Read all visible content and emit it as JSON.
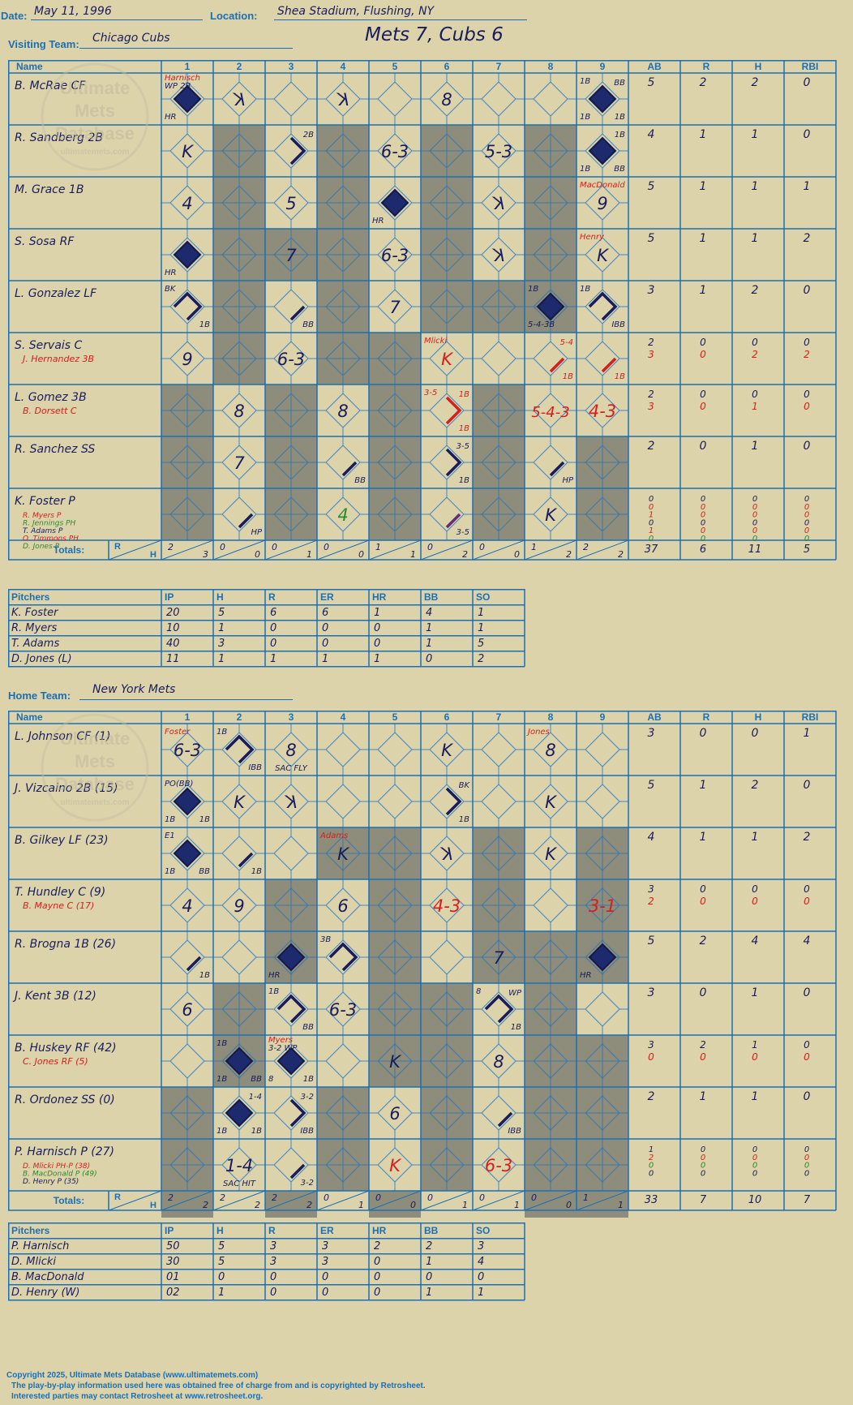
{
  "header": {
    "date_label": "Date:",
    "date": "May 11, 1996",
    "location_label": "Location:",
    "location": "Shea Stadium, Flushing, NY",
    "visiting_label": "Visiting Team:",
    "visiting_team": "Chicago Cubs",
    "home_label": "Home Team:",
    "home_team": "New York Mets",
    "result": "Mets 7, Cubs 6"
  },
  "watermark": {
    "l1": "Ultimate",
    "l2": "Mets",
    "l3": "Database",
    "l4": "ultimatemets.com"
  },
  "columns": {
    "name": "Name",
    "innings": [
      "1",
      "2",
      "3",
      "4",
      "5",
      "6",
      "7",
      "8",
      "9"
    ],
    "stats": [
      "AB",
      "R",
      "H",
      "RBI"
    ],
    "totals": "Totals:",
    "rh_r": "R",
    "rh_h": "H"
  },
  "pitch_cols": [
    "Pitchers",
    "IP",
    "H",
    "R",
    "ER",
    "HR",
    "BB",
    "SO"
  ],
  "colors": {
    "blue": "#1c6fb4",
    "ink": "#1a1d5c",
    "red": "#d42020",
    "green": "#2d8a2d",
    "purple": "#6a2a7a",
    "gray": "#8e8c7a",
    "paper": "#dcd3ab"
  },
  "visitors": {
    "shaded": [
      [],
      [
        2,
        4,
        6,
        8
      ],
      [
        2,
        4,
        6,
        8
      ],
      [
        2,
        3,
        4,
        6,
        8
      ],
      [
        2,
        4,
        6,
        7,
        8
      ],
      [
        2,
        4,
        5
      ],
      [
        1,
        3,
        5,
        7
      ],
      [
        1,
        3,
        5,
        7,
        9
      ],
      [
        1,
        3,
        5,
        7,
        9
      ]
    ],
    "rows": [
      {
        "name": "B. McRae CF",
        "subs": [],
        "stats": [
          [
            "5"
          ],
          [
            "2"
          ],
          [
            "2"
          ],
          [
            "0"
          ]
        ],
        "cells": {
          "1": {
            "d": "score",
            "tl": "Harnisch",
            "tlc": "red",
            "tl2": "WP 2B",
            "bl": "HR"
          },
          "2": {
            "t": "K",
            "k": "rev"
          },
          "4": {
            "t": "K",
            "k": "rev"
          },
          "6": {
            "t": "8"
          },
          "9": {
            "d": "score",
            "tl": "1B",
            "tr": "BB",
            "bl": "1B",
            "br": "1B"
          }
        }
      },
      {
        "name": "R. Sandberg 2B",
        "subs": [],
        "stats": [
          [
            "4"
          ],
          [
            "1"
          ],
          [
            "1"
          ],
          [
            "0"
          ]
        ],
        "cells": {
          "1": {
            "t": "K"
          },
          "3": {
            "d": "2b",
            "tr": "2B"
          },
          "5": {
            "t": "6-3"
          },
          "7": {
            "t": "5-3"
          },
          "9": {
            "d": "score",
            "tr": "1B",
            "bl": "1B",
            "br": "BB"
          }
        }
      },
      {
        "name": "M. Grace 1B",
        "subs": [],
        "stats": [
          [
            "5"
          ],
          [
            "1"
          ],
          [
            "1"
          ],
          [
            "1"
          ]
        ],
        "cells": {
          "1": {
            "t": "4"
          },
          "3": {
            "t": "5"
          },
          "5": {
            "d": "score",
            "bl": "HR"
          },
          "7": {
            "t": "K",
            "k": "rev"
          },
          "9": {
            "t": "9",
            "tl": "MacDonald",
            "tlc": "red"
          }
        }
      },
      {
        "name": "S. Sosa RF",
        "subs": [],
        "stats": [
          [
            "5"
          ],
          [
            "1"
          ],
          [
            "1"
          ],
          [
            "2"
          ]
        ],
        "cells": {
          "1": {
            "d": "score",
            "bl": "HR"
          },
          "3": {
            "t": "7"
          },
          "5": {
            "t": "6-3"
          },
          "7": {
            "t": "K",
            "k": "rev"
          },
          "9": {
            "t": "K",
            "tl": "Henry",
            "tlc": "red"
          }
        }
      },
      {
        "name": "L. Gonzalez LF",
        "subs": [],
        "stats": [
          [
            "3"
          ],
          [
            "1"
          ],
          [
            "2"
          ],
          [
            "0"
          ]
        ],
        "cells": {
          "1": {
            "d": "3b",
            "tl": "BK",
            "br": "1B"
          },
          "3": {
            "d": "1b",
            "br": "BB"
          },
          "5": {
            "t": "7"
          },
          "8": {
            "d": "score",
            "tl": "1B",
            "bl": "5-4-3B"
          },
          "9": {
            "d": "3b",
            "tl": "1B",
            "br": "IBB"
          }
        }
      },
      {
        "name": "S. Servais C",
        "subs": [
          {
            "n": "J. Hernandez 3B",
            "c": "red"
          }
        ],
        "stats": [
          [
            "2",
            "3"
          ],
          [
            "0",
            "0"
          ],
          [
            "0",
            "2"
          ],
          [
            "0",
            "2"
          ]
        ],
        "cells": {
          "1": {
            "t": "9"
          },
          "3": {
            "t": "6-3"
          },
          "6": {
            "t": "K",
            "c": "red",
            "tl": "Mlicki",
            "tlc": "red"
          },
          "8": {
            "d": "1b",
            "lc": "red",
            "tr": "5-4",
            "trc": "red",
            "br": "1B",
            "brc": "red"
          },
          "9": {
            "d": "1b",
            "lc": "red",
            "br": "1B",
            "brc": "red"
          }
        }
      },
      {
        "name": "L. Gomez 3B",
        "subs": [
          {
            "n": "B. Dorsett C",
            "c": "red"
          }
        ],
        "stats": [
          [
            "2",
            "3"
          ],
          [
            "0",
            "0"
          ],
          [
            "0",
            "1"
          ],
          [
            "0",
            "0"
          ]
        ],
        "cells": {
          "2": {
            "t": "8"
          },
          "4": {
            "t": "8"
          },
          "6": {
            "d": "2b",
            "lc": "red",
            "tl": "3-5",
            "tlc": "red",
            "tr": "1B",
            "trc": "red",
            "br": "1B",
            "brc": "red"
          },
          "8": {
            "t": "5-4-3",
            "c": "red"
          },
          "9": {
            "t": "4-3",
            "c": "red"
          }
        }
      },
      {
        "name": "R. Sanchez SS",
        "subs": [],
        "stats": [
          [
            "2"
          ],
          [
            "0"
          ],
          [
            "1"
          ],
          [
            "0"
          ]
        ],
        "cells": {
          "2": {
            "t": "7"
          },
          "4": {
            "d": "1b",
            "br": "BB"
          },
          "6": {
            "d": "2b",
            "tr": "3-5",
            "br": "1B"
          },
          "8": {
            "d": "1b",
            "br": "HP"
          }
        }
      },
      {
        "name": "K. Foster P",
        "subs": [
          {
            "n": "R. Myers P",
            "c": "red"
          },
          {
            "n": "R. Jennings PH",
            "c": "green"
          },
          {
            "n": "T. Adams P",
            "c": "ink"
          },
          {
            "n": "O. Timmons PH",
            "c": "red"
          },
          {
            "n": "D. Jones P",
            "c": "green"
          }
        ],
        "stats": [
          [
            "0",
            "0",
            "1",
            "0",
            "1",
            "0"
          ],
          [
            "0",
            "0",
            "0",
            "0",
            "0",
            "0"
          ],
          [
            "0",
            "0",
            "0",
            "0",
            "0",
            "0"
          ],
          [
            "0",
            "0",
            "0",
            "0",
            "0",
            "0"
          ]
        ],
        "subcol": [
          "ink",
          "red",
          "red",
          "ink",
          "red",
          "green"
        ],
        "cells": {
          "2": {
            "d": "1b",
            "br": "HP"
          },
          "4": {
            "t": "4",
            "c": "green"
          },
          "6": {
            "d": "1b",
            "lc": "purple",
            "br": "3-5"
          },
          "8": {
            "t": "K"
          }
        }
      }
    ],
    "totals": [
      [
        "2",
        "3"
      ],
      [
        "0",
        "0"
      ],
      [
        "0",
        "1"
      ],
      [
        "0",
        "0"
      ],
      [
        "1",
        "1"
      ],
      [
        "0",
        "2"
      ],
      [
        "0",
        "0"
      ],
      [
        "1",
        "2"
      ],
      [
        "2",
        "2"
      ]
    ],
    "grand": [
      "37",
      "6",
      "11",
      "5"
    ],
    "pitchers": [
      [
        "K. Foster",
        "20",
        "5",
        "6",
        "6",
        "1",
        "4",
        "1"
      ],
      [
        "R. Myers",
        "10",
        "1",
        "0",
        "0",
        "0",
        "1",
        "1"
      ],
      [
        "T. Adams",
        "40",
        "3",
        "0",
        "0",
        "0",
        "1",
        "5"
      ],
      [
        "D. Jones (L)",
        "11",
        "1",
        "1",
        "1",
        "1",
        "0",
        "2"
      ]
    ]
  },
  "home": {
    "shaded": [
      [],
      [],
      [
        4,
        5,
        7,
        9
      ],
      [
        3,
        5,
        7,
        9
      ],
      [
        3,
        5,
        7,
        8,
        9
      ],
      [
        2,
        5,
        6,
        8
      ],
      [
        2,
        5,
        6,
        8,
        9
      ],
      [
        1,
        4,
        6,
        8,
        9
      ],
      [
        1,
        4,
        6,
        8,
        9
      ],
      [
        1,
        3,
        5,
        8,
        9
      ]
    ],
    "rows": [
      {
        "name": "L. Johnson CF (1)",
        "subs": [],
        "stats": [
          [
            "3"
          ],
          [
            "0"
          ],
          [
            "0"
          ],
          [
            "1"
          ]
        ],
        "cells": {
          "1": {
            "t": "6-3",
            "tl": "Foster",
            "tlc": "red"
          },
          "2": {
            "d": "3b",
            "tl": "1B",
            "br": "IBB"
          },
          "3": {
            "t": "8",
            "b": "SAC FLY"
          },
          "6": {
            "t": "K"
          },
          "8": {
            "t": "8",
            "tl": "Jones",
            "tlc": "red"
          }
        }
      },
      {
        "name": "J. Vizcaino 2B (15)",
        "subs": [],
        "stats": [
          [
            "5"
          ],
          [
            "1"
          ],
          [
            "2"
          ],
          [
            "0"
          ]
        ],
        "cells": {
          "1": {
            "d": "score",
            "tl": "PO(BB)",
            "bl": "1B",
            "br": "1B"
          },
          "2": {
            "t": "K"
          },
          "3": {
            "t": "K",
            "k": "rev"
          },
          "6": {
            "d": "2b",
            "tr": "BK",
            "br": "1B"
          },
          "8": {
            "t": "K"
          }
        }
      },
      {
        "name": "B. Gilkey LF (23)",
        "subs": [],
        "stats": [
          [
            "4"
          ],
          [
            "1"
          ],
          [
            "1"
          ],
          [
            "2"
          ]
        ],
        "cells": {
          "1": {
            "d": "score",
            "tl": "E1",
            "bl": "1B",
            "br": "BB"
          },
          "2": {
            "d": "1b",
            "br": "1B"
          },
          "4": {
            "t": "K",
            "tl": "Adams",
            "tlc": "red"
          },
          "6": {
            "t": "K",
            "k": "rev"
          },
          "8": {
            "t": "K"
          }
        }
      },
      {
        "name": "T. Hundley C (9)",
        "subs": [
          {
            "n": "B. Mayne C (17)",
            "c": "red"
          }
        ],
        "stats": [
          [
            "3",
            "2"
          ],
          [
            "0",
            "0"
          ],
          [
            "0",
            "0"
          ],
          [
            "0",
            "0"
          ]
        ],
        "cells": {
          "1": {
            "t": "4"
          },
          "2": {
            "t": "9"
          },
          "4": {
            "t": "6"
          },
          "6": {
            "t": "4-3",
            "c": "red"
          },
          "9": {
            "t": "3-1",
            "c": "red"
          }
        }
      },
      {
        "name": "R. Brogna 1B (26)",
        "subs": [],
        "stats": [
          [
            "5"
          ],
          [
            "2"
          ],
          [
            "4"
          ],
          [
            "4"
          ]
        ],
        "cells": {
          "1": {
            "d": "1b",
            "br": "1B"
          },
          "3": {
            "d": "score",
            "bl": "HR"
          },
          "4": {
            "d": "3b",
            "tl": "3B"
          },
          "7": {
            "t": "7"
          },
          "9": {
            "d": "score",
            "bl": "HR"
          }
        }
      },
      {
        "name": "J. Kent 3B (12)",
        "subs": [],
        "stats": [
          [
            "3"
          ],
          [
            "0"
          ],
          [
            "1"
          ],
          [
            "0"
          ]
        ],
        "cells": {
          "1": {
            "t": "6"
          },
          "3": {
            "d": "3b",
            "tl": "1B",
            "br": "BB"
          },
          "4": {
            "t": "6-3"
          },
          "7": {
            "d": "3b",
            "tl": "8",
            "tr": "WP",
            "br": "1B"
          }
        }
      },
      {
        "name": "B. Huskey RF (42)",
        "subs": [
          {
            "n": "C. Jones RF (5)",
            "c": "red"
          }
        ],
        "stats": [
          [
            "3",
            "0"
          ],
          [
            "2",
            "0"
          ],
          [
            "1",
            "0"
          ],
          [
            "0",
            "0"
          ]
        ],
        "cells": {
          "2": {
            "d": "score",
            "tl": "1B",
            "bl": "1B",
            "br": "BB"
          },
          "3": {
            "d": "score",
            "tl": "Myers",
            "tlc": "red",
            "tl2": "3-2 WP",
            "bl": "8",
            "br": "1B"
          },
          "5": {
            "t": "K"
          },
          "7": {
            "t": "8"
          }
        }
      },
      {
        "name": "R. Ordonez SS (0)",
        "subs": [],
        "stats": [
          [
            "2"
          ],
          [
            "1"
          ],
          [
            "1"
          ],
          [
            "0"
          ]
        ],
        "cells": {
          "2": {
            "d": "score",
            "tr": "1-4",
            "bl": "1B",
            "br": "1B"
          },
          "3": {
            "d": "2b",
            "tr": "3-2",
            "br": "IBB"
          },
          "5": {
            "t": "6"
          },
          "7": {
            "d": "1b",
            "br": "IBB"
          }
        }
      },
      {
        "name": "P. Harnisch P (27)",
        "subs": [
          {
            "n": "D. Mlicki PH-P (38)",
            "c": "red"
          },
          {
            "n": "B. MacDonald P (49)",
            "c": "green"
          },
          {
            "n": "D. Henry P (35)",
            "c": "ink"
          }
        ],
        "stats": [
          [
            "1",
            "2",
            "0",
            "0"
          ],
          [
            "0",
            "0",
            "0",
            "0"
          ],
          [
            "0",
            "0",
            "0",
            "0"
          ],
          [
            "0",
            "0",
            "0",
            "0"
          ]
        ],
        "subcol": [
          "ink",
          "red",
          "green",
          "ink"
        ],
        "cells": {
          "2": {
            "t": "1-4",
            "b": "SAC HIT"
          },
          "3": {
            "d": "1b",
            "br": "3-2"
          },
          "5": {
            "t": "K",
            "c": "red"
          },
          "7": {
            "t": "6-3",
            "c": "red"
          }
        }
      }
    ],
    "totals": [
      [
        "2",
        "2"
      ],
      [
        "2",
        "2"
      ],
      [
        "2",
        "2"
      ],
      [
        "0",
        "1"
      ],
      [
        "0",
        "0"
      ],
      [
        "0",
        "1"
      ],
      [
        "0",
        "1"
      ],
      [
        "0",
        "0"
      ],
      [
        "1",
        "1"
      ]
    ],
    "grand": [
      "33",
      "7",
      "10",
      "7"
    ],
    "pitchers": [
      [
        "P. Harnisch",
        "50",
        "5",
        "3",
        "3",
        "2",
        "2",
        "3"
      ],
      [
        "D. Mlicki",
        "30",
        "5",
        "3",
        "3",
        "0",
        "1",
        "4"
      ],
      [
        "B. MacDonald",
        "01",
        "0",
        "0",
        "0",
        "0",
        "0",
        "0"
      ],
      [
        "D. Henry (W)",
        "02",
        "1",
        "0",
        "0",
        "0",
        "1",
        "1"
      ]
    ]
  },
  "footer": {
    "l1": "Copyright 2025, Ultimate Mets Database (www.ultimatemets.com)",
    "l2": "The play-by-play information used here was obtained free of charge from and is copyrighted by Retrosheet.",
    "l3": "Interested parties may contact Retrosheet at www.retrosheet.org."
  }
}
